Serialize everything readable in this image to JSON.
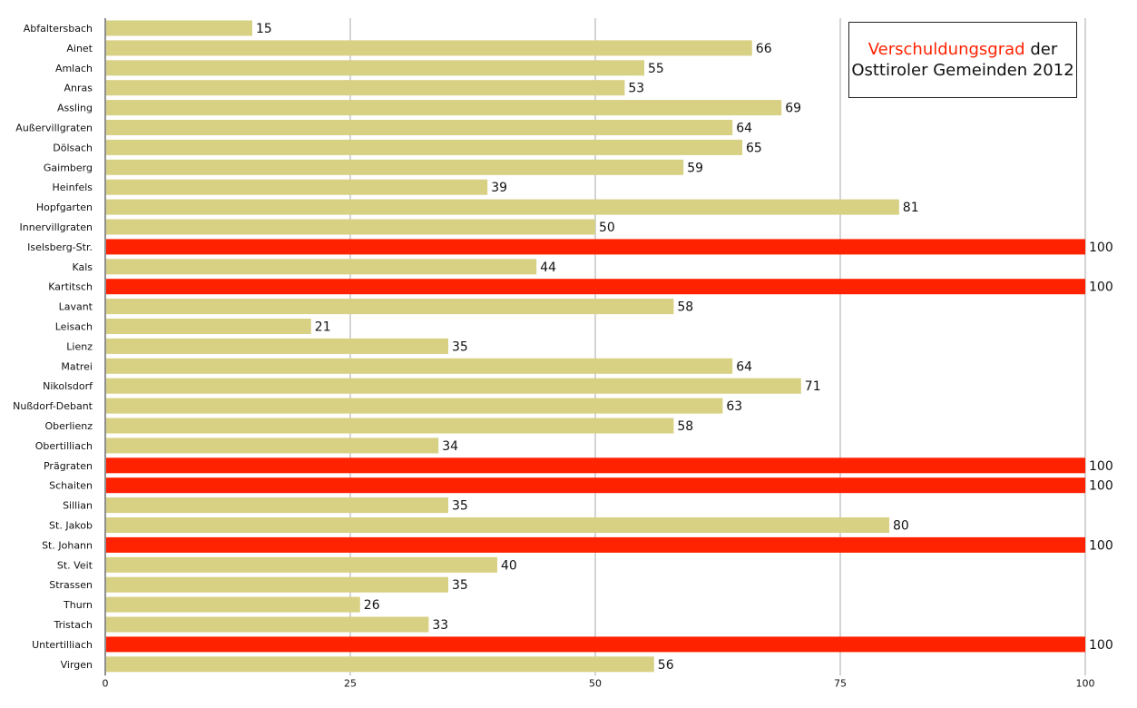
{
  "chart_data": {
    "type": "bar",
    "orientation": "horizontal",
    "title": {
      "accent": "Verschuldungsgrad",
      "rest": "der",
      "line2": "Osttiroler Gemeinden 2012"
    },
    "categories": [
      "Abfaltersbach",
      "Ainet",
      "Amlach",
      "Anras",
      "Assling",
      "Außervillgraten",
      "Dölsach",
      "Gaimberg",
      "Heinfels",
      "Hopfgarten",
      "Innervillgraten",
      "Iselsberg-Str.",
      "Kals",
      "Kartitsch",
      "Lavant",
      "Leisach",
      "Lienz",
      "Matrei",
      "Nikolsdorf",
      "Nußdorf-Debant",
      "Oberlienz",
      "Obertilliach",
      "Prägraten",
      "Schaiten",
      "Sillian",
      "St. Jakob",
      "St. Johann",
      "St. Veit",
      "Strassen",
      "Thurn",
      "Tristach",
      "Untertilliach",
      "Virgen"
    ],
    "values": [
      15,
      66,
      55,
      53,
      69,
      64,
      65,
      59,
      39,
      81,
      50,
      100,
      44,
      100,
      58,
      21,
      35,
      64,
      71,
      63,
      58,
      34,
      100,
      100,
      35,
      80,
      100,
      40,
      35,
      26,
      33,
      100,
      56
    ],
    "value_labels": [
      "15",
      "66",
      "55",
      "53",
      "69",
      "64",
      "65",
      "59",
      "39",
      "81",
      "50",
      "100",
      "44",
      "100",
      "58",
      "21",
      "35",
      "64",
      "71",
      "63",
      "58",
      "34",
      "100",
      "100",
      "35",
      "80",
      "100",
      "40",
      "35",
      "26",
      "33",
      "100",
      "56"
    ],
    "x_ticks": [
      0,
      25,
      50,
      75,
      100
    ],
    "x_tick_labels": [
      "0",
      "25",
      "50",
      "75",
      "100"
    ],
    "xlim": [
      0,
      100
    ],
    "grid": true,
    "highlight_threshold": 100,
    "colors": {
      "bar": "#d8d083",
      "highlight": "#ff2200",
      "title_accent": "#ff2200",
      "grid": "#a8a8a8",
      "text": "#111111"
    },
    "legend": "none"
  }
}
